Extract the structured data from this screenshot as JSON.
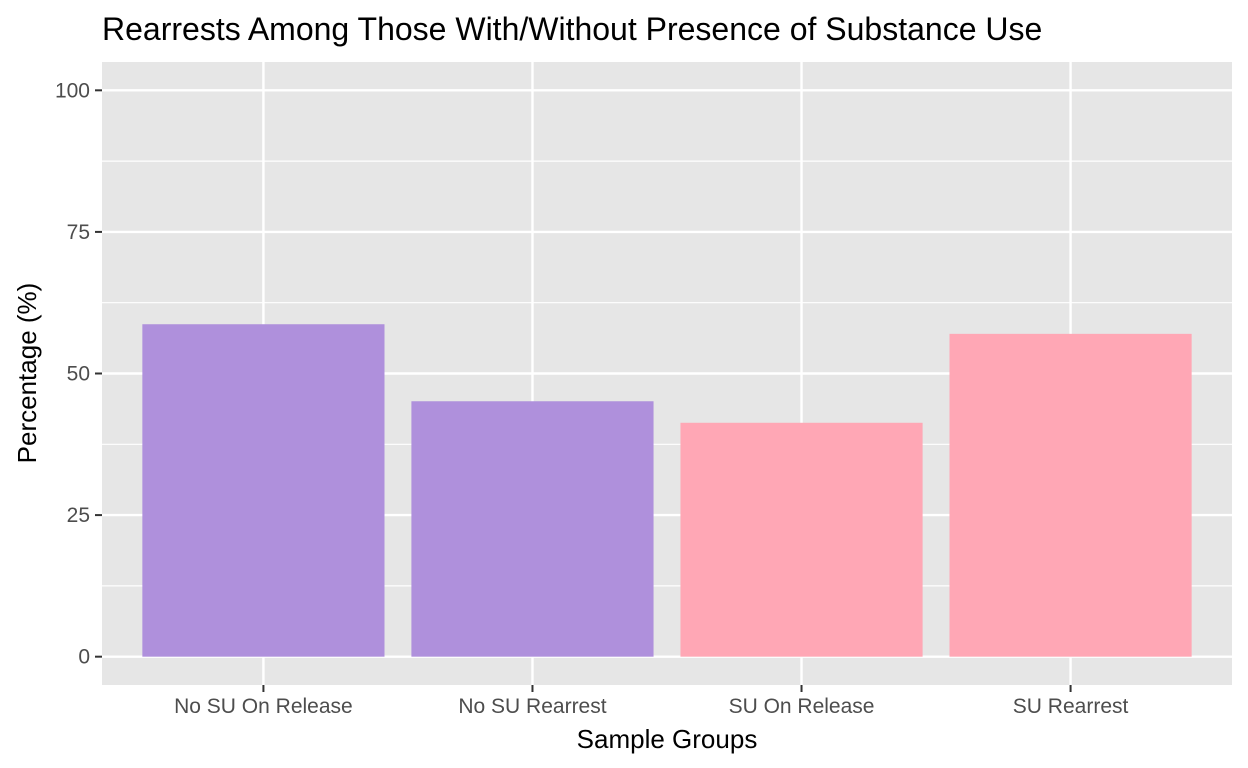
{
  "chart_data": {
    "type": "bar",
    "title": "Rearrests Among Those With/Without Presence of Substance Use",
    "xlabel": "Sample Groups",
    "ylabel": "Percentage (%)",
    "categories": [
      "No SU On Release",
      "No SU Rearrest",
      "SU On Release",
      "SU Rearrest"
    ],
    "values": [
      58.7,
      45.1,
      41.3,
      57.0
    ],
    "bar_colors": [
      "#AF90DC",
      "#AF90DC",
      "#FFA7B5",
      "#FFA7B5"
    ],
    "ylim": [
      -5,
      105
    ],
    "yticks": [
      0,
      25,
      50,
      75,
      100
    ],
    "ytick_labels": [
      "0",
      "25",
      "50",
      "75",
      "100"
    ],
    "grid": true,
    "panel_background": "#E6E6E6",
    "grid_color": "#FFFFFF"
  }
}
